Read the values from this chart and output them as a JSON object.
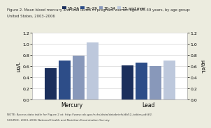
{
  "title_line1": "Figure 2. Mean blood mercury and lead levels in pregnant women aged 18–49 years, by age group:",
  "title_line2": "United States, 2003–2006",
  "note_line1": "NOTE: Access data table for Figure 2 at: http://www.cdc.gov/nchs/data/databriefs/db52_tables.pdf#2.",
  "note_line2": "SOURCE: 2003–2006 National Health and Nutrition Examination Survey.",
  "legend_labels": [
    "18–24",
    "25–29",
    "30–34",
    "35 and over"
  ],
  "bar_colors": [
    "#1b2f5c",
    "#2d4d88",
    "#8898ba",
    "#bdc8dc"
  ],
  "groups": [
    "Mercury",
    "Lead"
  ],
  "mercury_values": [
    0.56,
    0.7,
    0.79,
    1.02
  ],
  "lead_values": [
    0.61,
    0.66,
    0.6,
    0.7
  ],
  "ylim": [
    0.0,
    1.2
  ],
  "yticks": [
    0.0,
    0.2,
    0.4,
    0.6,
    0.8,
    1.0,
    1.2
  ],
  "ylabel_left": "µg/L",
  "ylabel_right": "µg/dL",
  "background_color": "#ececdf",
  "plot_bg_color": "#ffffff",
  "spine_color": "#aaaaaa",
  "grid_color": "#cccccc"
}
